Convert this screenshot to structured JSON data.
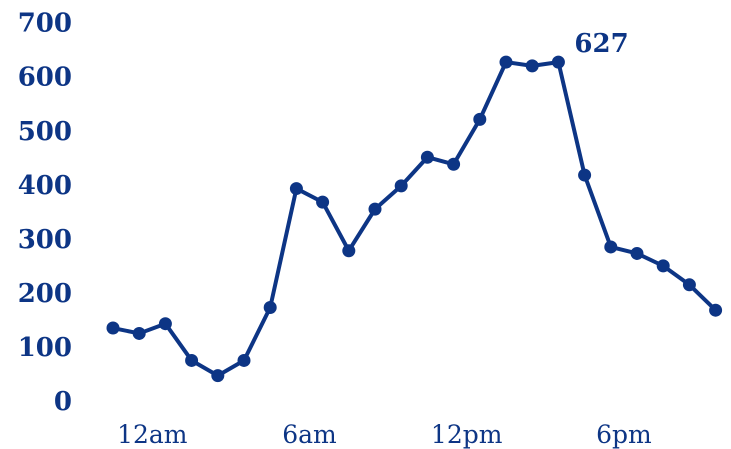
{
  "chart_data": {
    "type": "line",
    "color": "#0d3585",
    "x": [
      0,
      1,
      2,
      3,
      4,
      5,
      6,
      7,
      8,
      9,
      10,
      11,
      12,
      13,
      14,
      15,
      16,
      17,
      18,
      19,
      20,
      21,
      22,
      23
    ],
    "values": [
      135,
      125,
      143,
      75,
      47,
      75,
      173,
      393,
      368,
      278,
      355,
      398,
      451,
      438,
      521,
      627,
      620,
      627,
      418,
      285,
      273,
      250,
      215,
      168
    ],
    "x_tick_positions": [
      1.5,
      7.5,
      13.5,
      19.5
    ],
    "x_tick_labels": [
      "12am",
      "6am",
      "12pm",
      "6pm"
    ],
    "y_ticks": [
      0,
      100,
      200,
      300,
      400,
      500,
      600,
      700
    ],
    "ylim": [
      0,
      700
    ],
    "annotations": [
      {
        "index": 17,
        "text": "627"
      }
    ],
    "grid": false,
    "legend": "none"
  }
}
